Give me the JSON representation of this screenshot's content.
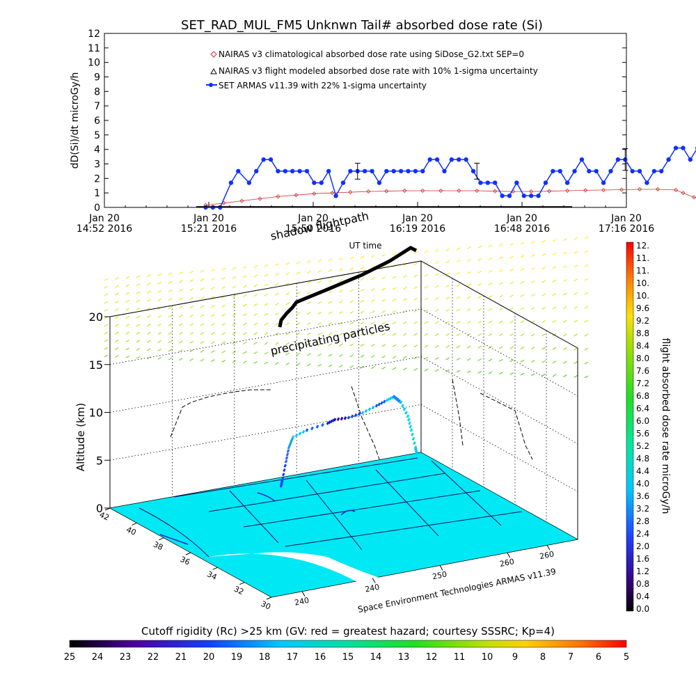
{
  "chart_data": [
    {
      "type": "line",
      "title": "SET_RAD_MUL_FM5 Unknwn Tail#  absorbed dose rate (Si)",
      "xlabel": "UT time",
      "ylabel": "dD(Si)/dt microGy/h",
      "ylim": [
        0,
        12
      ],
      "yticks": [
        "0",
        "1",
        "2",
        "3",
        "4",
        "5",
        "6",
        "7",
        "8",
        "9",
        "10",
        "11",
        "12"
      ],
      "xticks": [
        {
          "day": "Jan 20",
          "time": "14:52 2016"
        },
        {
          "day": "Jan 20",
          "time": "15:21 2016"
        },
        {
          "day": "Jan 20",
          "time": "15:50 2016"
        },
        {
          "day": "Jan 20",
          "time": "16:19 2016"
        },
        {
          "day": "Jan 20",
          "time": "16:48 2016"
        },
        {
          "day": "Jan 20",
          "time": "17:16 2016"
        }
      ],
      "legend": [
        {
          "label": "NAIRAS v3 climatological absorbed dose rate using SiDose_G2.txt SEP=0",
          "color": "#d03030",
          "marker": "diamond"
        },
        {
          "label": "NAIRAS v3 flight modeled absorbed dose rate with 10% 1-sigma uncertainty",
          "color": "#000000",
          "marker": "triangle"
        },
        {
          "label": "SET ARMAS v11.39 with 22% 1-sigma uncertainty",
          "color": "#1030ff",
          "marker": "circle"
        }
      ],
      "series": [
        {
          "name": "SET ARMAS v11.39 with 22% 1-sigma uncertainty",
          "x_min": [
            28,
            30,
            32,
            35,
            37,
            40,
            42,
            44,
            46,
            48,
            50,
            52,
            54,
            56,
            58,
            60,
            62,
            64,
            66,
            68,
            70,
            72,
            74,
            76,
            78,
            80,
            82,
            84,
            86,
            88,
            90,
            92,
            94,
            96,
            98,
            100,
            102,
            104,
            106,
            108,
            110,
            112,
            114,
            116,
            118,
            120,
            122,
            124,
            126,
            128,
            130,
            132,
            134,
            136,
            138,
            140,
            142,
            144,
            146,
            148,
            150,
            152,
            154,
            156,
            158,
            160,
            162,
            164,
            166,
            168,
            170,
            172,
            174,
            176,
            178,
            180,
            182,
            184
          ],
          "values": [
            0,
            0,
            0,
            1.7,
            2.5,
            1.7,
            2.5,
            3.3,
            3.3,
            2.5,
            2.5,
            2.5,
            2.5,
            2.5,
            1.7,
            1.7,
            2.5,
            0.8,
            1.7,
            2.5,
            2.5,
            2.5,
            2.5,
            1.7,
            2.5,
            2.5,
            2.5,
            2.5,
            2.5,
            2.5,
            3.3,
            3.3,
            2.5,
            3.3,
            3.3,
            3.3,
            2.5,
            1.7,
            1.7,
            1.7,
            0.8,
            0.8,
            1.7,
            0.8,
            0.8,
            0.8,
            1.7,
            2.5,
            2.5,
            1.7,
            2.5,
            3.3,
            2.5,
            2.5,
            1.7,
            2.5,
            3.3,
            3.3,
            2.5,
            2.5,
            1.7,
            2.5,
            2.5,
            3.3,
            4.1,
            4.1,
            3.3,
            4.1,
            3.3,
            3.3,
            3.3,
            3.3,
            3.3,
            3.3,
            3.3,
            3.3,
            3.3,
            3.3
          ]
        },
        {
          "name": "NAIRAS v3 climatological absorbed dose rate using SiDose_G2.txt SEP=0",
          "x_min": [
            28,
            33,
            38,
            43,
            48,
            53,
            58,
            63,
            68,
            73,
            78,
            83,
            88,
            93,
            98,
            103,
            108,
            113,
            118,
            123,
            128,
            133,
            138,
            143,
            148,
            153,
            158,
            160,
            163,
            168,
            173,
            178,
            183,
            184
          ],
          "values": [
            0.15,
            0.3,
            0.45,
            0.6,
            0.75,
            0.85,
            0.95,
            1.0,
            1.05,
            1.1,
            1.12,
            1.15,
            1.15,
            1.15,
            1.15,
            1.15,
            1.12,
            1.1,
            1.1,
            1.12,
            1.15,
            1.18,
            1.2,
            1.22,
            1.25,
            1.25,
            1.2,
            1.0,
            0.7,
            0.4,
            0.2,
            0.1,
            0.05,
            0.05
          ]
        }
      ],
      "error_bars": [
        {
          "x_min": 70,
          "value": 2.5,
          "err": 0.55
        },
        {
          "x_min": 103,
          "value": 2.5,
          "err": 0.55
        },
        {
          "x_min": 144,
          "value": 3.3,
          "err": 0.75
        },
        {
          "x_min": 184,
          "value": 3.3,
          "err": 0.75
        }
      ]
    },
    {
      "type": "scatter3d",
      "zlabel": "Altitude (km)",
      "zlim": [
        0,
        20
      ],
      "zticks": [
        "0",
        "5",
        "10",
        "15",
        "20"
      ],
      "lat_ticks": [
        "42",
        "40",
        "38",
        "36",
        "34",
        "32",
        "30"
      ],
      "lon_ticks": [
        "240",
        "240",
        "250",
        "260",
        "260"
      ],
      "annotations": {
        "shadow_flightpath": "shadow flightpath",
        "precipitating": "precipitating particles",
        "credit": "Space Environment Technologies ARMAS v11.39"
      },
      "colorbar": {
        "label": "flight absorbed dose rate microGy/h",
        "ticks": [
          "12.",
          "11.",
          "11.",
          "10.",
          "10.",
          "9.6",
          "9.2",
          "8.8",
          "8.4",
          "8.0",
          "7.6",
          "7.2",
          "6.8",
          "6.4",
          "6.0",
          "5.6",
          "5.2",
          "4.8",
          "4.4",
          "4.0",
          "3.6",
          "3.2",
          "2.8",
          "2.4",
          "2.0",
          "1.6",
          "1.2",
          "0.8",
          "0.4",
          "0.0"
        ]
      }
    }
  ],
  "rigidity_bar": {
    "title": "Cutoff rigidity (Rc) >25 km (GV: red = greatest hazard; courtesy SSSRC; Kp=4)",
    "ticks": [
      "25",
      "24",
      "23",
      "22",
      "21",
      "20",
      "19",
      "18",
      "17",
      "16",
      "15",
      "14",
      "13",
      "12",
      "11",
      "10",
      "9",
      "8",
      "7",
      "6",
      "5"
    ]
  },
  "colors": {
    "armas": "#1030ff",
    "nairas_clim": "#d03030",
    "map_fill": "#00e8f4"
  }
}
